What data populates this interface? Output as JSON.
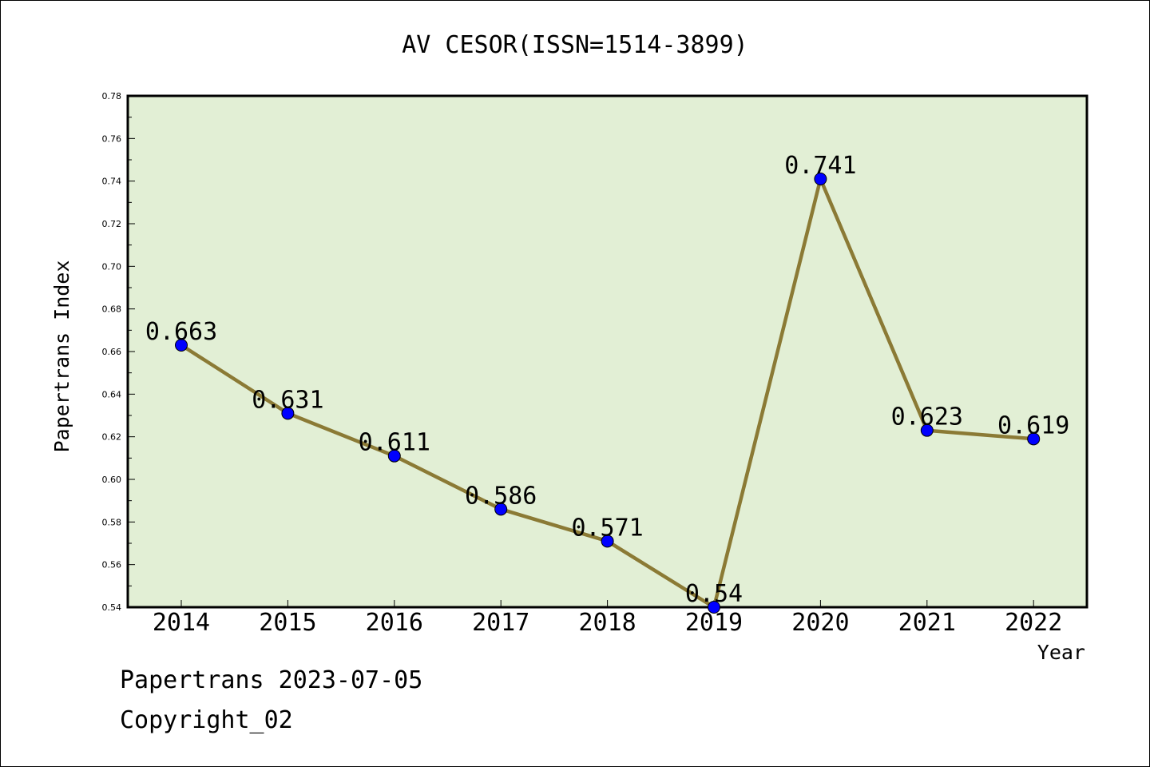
{
  "colors": {
    "plot_background": "#e2efd5",
    "line": "#8b7a35",
    "marker": "#0000ff",
    "frame": "#000000"
  },
  "footer": {
    "line1": "Papertrans 2023-07-05",
    "line2": "Copyright_02"
  },
  "chart_data": {
    "type": "line",
    "title": "AV CESOR(ISSN=1514-3899)",
    "xlabel": "Year",
    "ylabel": "Papertrans Index",
    "categories": [
      "2014",
      "2015",
      "2016",
      "2017",
      "2018",
      "2019",
      "2020",
      "2021",
      "2022"
    ],
    "values": [
      0.663,
      0.631,
      0.611,
      0.586,
      0.571,
      0.54,
      0.741,
      0.623,
      0.619
    ],
    "data_labels": [
      "0.663",
      "0.631",
      "0.611",
      "0.586",
      "0.571",
      "0.54",
      "0.741",
      "0.623",
      "0.619"
    ],
    "ylim": [
      0.54,
      0.78
    ],
    "yticks": [
      "0.54",
      "0.56",
      "0.58",
      "0.60",
      "0.62",
      "0.64",
      "0.66",
      "0.68",
      "0.70",
      "0.72",
      "0.74",
      "0.76",
      "0.78"
    ],
    "grid": false,
    "legend": "none"
  }
}
